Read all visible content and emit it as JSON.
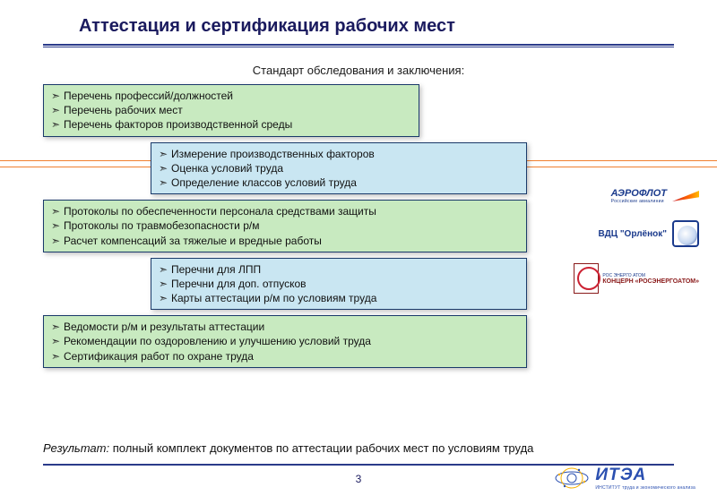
{
  "title": "Аттестация и сертификация рабочих мест",
  "subtitle": "Стандарт обследования и заключения:",
  "blocks": [
    {
      "color": "green",
      "layout": "left",
      "lines": [
        "Перечень профессий/должностей",
        "Перечень рабочих мест",
        "Перечень факторов производственной среды"
      ]
    },
    {
      "color": "blue",
      "layout": "right",
      "lines": [
        "Измерение производственных факторов",
        "Оценка условий труда",
        "Определение классов условий труда"
      ]
    },
    {
      "color": "green",
      "layout": "wide",
      "lines": [
        "Протоколы по обеспеченности персонала средствами защиты",
        "Протоколы по травмобезопасности р/м",
        "Расчет компенсаций за тяжелые и вредные работы"
      ]
    },
    {
      "color": "blue",
      "layout": "right",
      "lines": [
        "Перечни для ЛПП",
        "Перечни для доп. отпусков",
        "Карты аттестации р/м по условиям труда"
      ]
    },
    {
      "color": "green",
      "layout": "wide",
      "lines": [
        "Ведомости р/м и результаты аттестации",
        "Рекомендации по оздоровлению и улучшению условий труда",
        "Сертификация работ по охране труда"
      ]
    }
  ],
  "result_label": "Результат:",
  "result_text": "полный комплект документов по аттестации рабочих мест по условиям труда",
  "page_number": "3",
  "logos": {
    "aeroflot": {
      "name": "АЭРОФЛОТ",
      "sub": "Российские авиалинии"
    },
    "orlenok": {
      "name": "ВДЦ \"Орлёнок\""
    },
    "rosatom": {
      "name": "КОНЦЕРН «РОСЭНЕРГОАТОМ»",
      "badge": "РОС ЭНЕРГО АТОМ"
    }
  },
  "footer_logo": {
    "name": "ИТЭА",
    "sub": "ИНСТИТУТ\nтруда и экономического анализа"
  },
  "colors": {
    "title": "#1a1a5e",
    "rule": "#2a3a8a",
    "block_green": "#c8eac0",
    "block_blue": "#c9e6f2",
    "block_border": "#1a3a6a",
    "hairline": "#f08030",
    "itea": "#2a4fb0"
  }
}
